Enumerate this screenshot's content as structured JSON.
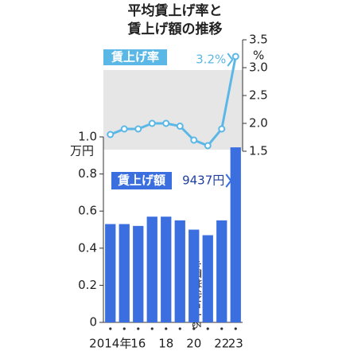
{
  "chart_data": [
    {
      "type": "line",
      "title": [
        "平均賃上げ率と",
        "賃上げ額の推移"
      ],
      "series": [
        {
          "name": "賃上げ率",
          "color": "#5bb8e6",
          "values": [
            1.8,
            1.9,
            1.9,
            2.0,
            2.0,
            1.95,
            1.7,
            1.6,
            1.9,
            3.2
          ],
          "value_labels": [
            null,
            null,
            null,
            null,
            null,
            null,
            null,
            null,
            null,
            "3.2%"
          ]
        }
      ],
      "y_unit": "%",
      "ylim": [
        1.5,
        3.5
      ],
      "yticks": [
        1.5,
        {
          "value": 2,
          "label": "2.0"
        },
        2.5,
        {
          "value": 3,
          "label": "3.0"
        },
        3.5
      ]
    },
    {
      "type": "bar",
      "categories": [
        "2014年",
        null,
        "16",
        null,
        "18",
        null,
        "20",
        null,
        "22",
        "23"
      ],
      "series": [
        {
          "name": "賃上げ額",
          "color": "#3b6fe0",
          "values": [
            0.53,
            0.53,
            0.52,
            0.57,
            0.57,
            0.55,
            0.5,
            0.47,
            0.55,
            0.9437
          ],
          "value_labels": [
            null,
            null,
            null,
            null,
            null,
            null,
            null,
            null,
            null,
            "9437円"
          ]
        }
      ],
      "y_unit": "万円",
      "ylim": [
        0,
        1
      ],
      "yticks": [
        0,
        0.2,
        0.4,
        0.6,
        0.8,
        {
          "value": 1,
          "label": "1.0"
        }
      ],
      "note": "※厚労省による"
    }
  ]
}
